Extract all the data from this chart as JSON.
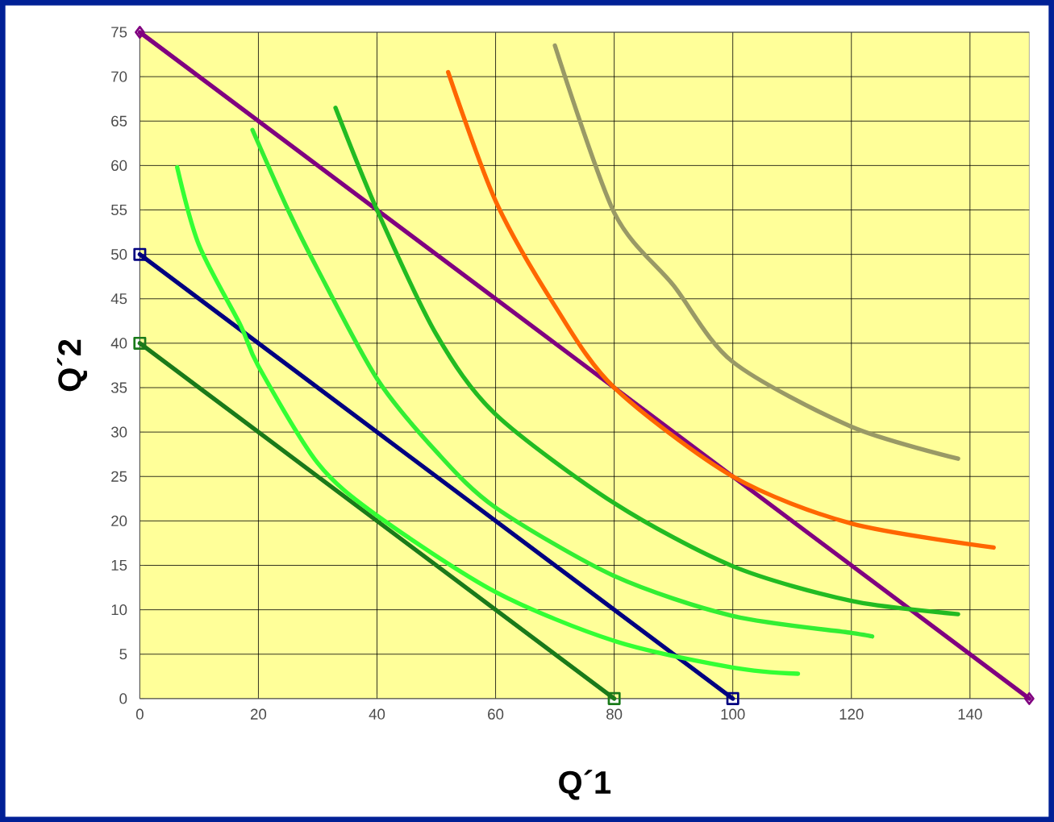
{
  "chart_data": {
    "type": "line",
    "xlabel": "Q´1",
    "ylabel": "Q´2",
    "xlim": [
      0,
      150
    ],
    "ylim": [
      0,
      75
    ],
    "xticks": [
      0,
      20,
      40,
      60,
      80,
      100,
      120,
      140
    ],
    "yticks": [
      0,
      5,
      10,
      15,
      20,
      25,
      30,
      35,
      40,
      45,
      50,
      55,
      60,
      65,
      70,
      75
    ],
    "grid": true,
    "line_style": "solid",
    "series": [
      {
        "color": "#800080",
        "marker": "diamond",
        "x": [
          0,
          150
        ],
        "values": [
          75,
          0
        ]
      },
      {
        "color": "#000080",
        "marker": "square",
        "x": [
          0,
          100
        ],
        "values": [
          50,
          0
        ]
      },
      {
        "color": "#1a7a1a",
        "marker": "square",
        "x": [
          0,
          80
        ],
        "values": [
          40,
          0
        ]
      },
      {
        "color": "#33ff33",
        "marker": "none",
        "x": [
          6.3,
          10,
          17,
          20,
          30,
          40,
          60,
          80,
          100,
          111
        ],
        "values": [
          59.8,
          51,
          42,
          37.4,
          26.5,
          20.6,
          12,
          6.5,
          3.5,
          2.8
        ]
      },
      {
        "color": "#33ee33",
        "marker": "none",
        "x": [
          19,
          25,
          30,
          40,
          50,
          60,
          80,
          100,
          120,
          123.5
        ],
        "values": [
          64,
          55,
          48.3,
          36,
          27.8,
          21.5,
          13.8,
          9.3,
          7.4,
          7
        ]
      },
      {
        "color": "#22bb22",
        "marker": "none",
        "x": [
          33,
          40,
          50,
          60,
          80,
          100,
          120,
          138
        ],
        "values": [
          66.5,
          55,
          41,
          32,
          22,
          14.9,
          11,
          9.5
        ]
      },
      {
        "color": "#ff6600",
        "marker": "none",
        "x": [
          52,
          60,
          70,
          80,
          100,
          120,
          144
        ],
        "values": [
          70.5,
          56,
          44.2,
          35,
          25,
          19.7,
          17
        ]
      },
      {
        "color": "#999966",
        "marker": "none",
        "x": [
          70,
          80,
          90,
          100,
          120,
          138
        ],
        "values": [
          73.5,
          54.7,
          46.5,
          37.9,
          30.6,
          27
        ]
      }
    ]
  }
}
